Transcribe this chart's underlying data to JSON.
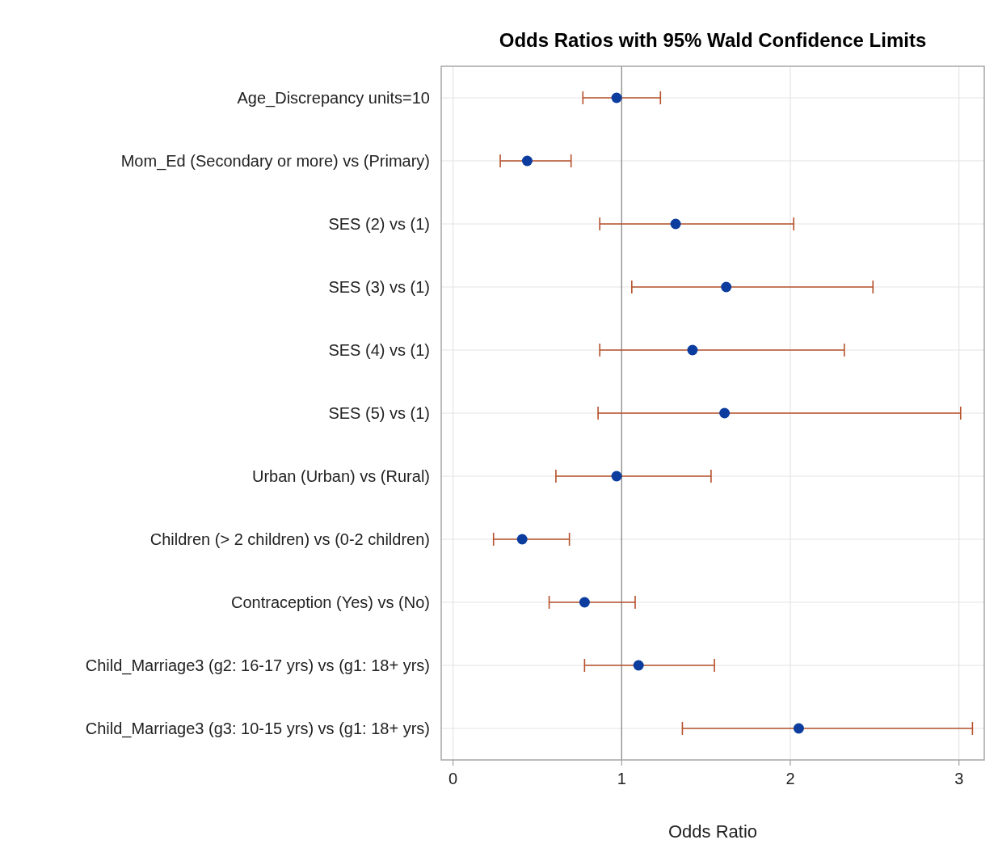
{
  "chart_data": {
    "type": "scatter",
    "orientation": "horizontal",
    "title": "Odds Ratios with 95% Wald Confidence Limits",
    "xlabel": "Odds Ratio",
    "categories": [
      "Age_Discrepancy units=10",
      "Mom_Ed (Secondary or more) vs (Primary)",
      "SES (2) vs (1)",
      "SES (3) vs (1)",
      "SES (4) vs (1)",
      "SES (5) vs (1)",
      "Urban (Urban) vs (Rural)",
      "Children (> 2 children) vs (0-2 children)",
      "Contraception (Yes) vs (No)",
      "Child_Marriage3 (g2: 16-17 yrs) vs (g1: 18+ yrs)",
      "Child_Marriage3 (g3: 10-15 yrs) vs (g1: 18+ yrs)"
    ],
    "series": [
      {
        "color": "#0b3c9e",
        "values": [
          0.97,
          0.44,
          1.32,
          1.62,
          1.42,
          1.61,
          0.97,
          0.41,
          0.78,
          1.1,
          2.05
        ],
        "errors": [
          [
            0.77,
            1.23
          ],
          [
            0.28,
            0.7
          ],
          [
            0.87,
            2.02
          ],
          [
            1.06,
            2.49
          ],
          [
            0.87,
            2.32
          ],
          [
            0.86,
            3.01
          ],
          [
            0.61,
            1.53
          ],
          [
            0.24,
            0.69
          ],
          [
            0.57,
            1.08
          ],
          [
            0.78,
            1.55
          ],
          [
            1.36,
            3.08
          ]
        ]
      }
    ],
    "xlim": [
      -0.07,
      3.15
    ],
    "xticks": [
      0,
      1,
      2,
      3
    ],
    "grid": true,
    "marker": "circle",
    "ref_lines": [
      {
        "axis": "x",
        "value": 1,
        "color": "#8c8c8c"
      }
    ]
  }
}
